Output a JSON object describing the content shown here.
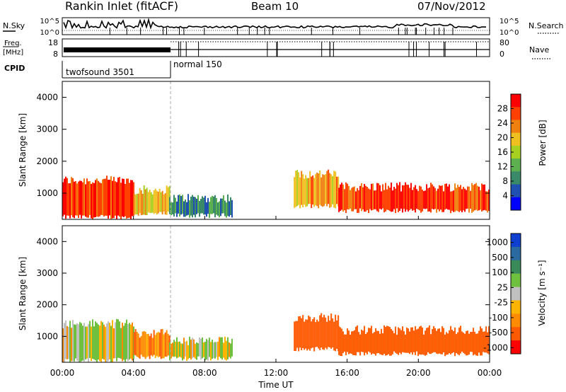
{
  "header": {
    "site": "Rankin Inlet (fitACF)",
    "beam": "Beam 10",
    "date": "07/Nov/2012"
  },
  "noise_panel": {
    "left_label": "N.Sky",
    "right_label": "N.Search",
    "top_tick": "10^5",
    "bottom_tick": "10^0"
  },
  "freq_panel": {
    "left_label_line1": "Freq.",
    "left_label_line2": "[MHz]",
    "right_label": "Nave",
    "left_ticks": [
      "18",
      "8"
    ],
    "right_ticks": [
      "80",
      "0"
    ]
  },
  "cpid_panel": {
    "label": "CPID",
    "segments": [
      {
        "name": "twofsound 3501",
        "start_hour": 0,
        "end_hour": 6
      },
      {
        "name": "normal 150",
        "start_hour": 6,
        "end_hour": 24
      }
    ]
  },
  "x_axis": {
    "label": "Time UT",
    "ticks": [
      "00:00",
      "04:00",
      "08:00",
      "12:00",
      "16:00",
      "20:00",
      "00:00"
    ]
  },
  "colors": {
    "power": [
      "#0000ff",
      "#2050b0",
      "#3a8a6a",
      "#5cb050",
      "#a8d020",
      "#f0c020",
      "#f08010",
      "#ff4000",
      "#ff0000"
    ],
    "velocity": [
      "#ff0000",
      "#ff5a00",
      "#ff8c00",
      "#ffb400",
      "#c0c0c0",
      "#70c040",
      "#3a8a5a",
      "#2a6aa0",
      "#1040d0"
    ]
  },
  "chart_data": [
    {
      "type": "heatmap",
      "panel": "power",
      "xlabel": "Time UT",
      "ylabel": "Slant Range [km]",
      "y_ticks": [
        "1000",
        "2000",
        "3000",
        "4000"
      ],
      "xlim_hours": [
        0,
        24
      ],
      "ylim_km": [
        180,
        4500
      ],
      "colorbar": {
        "label": "Power [dB]",
        "ticks": [
          "4",
          "8",
          "12",
          "16",
          "20",
          "24",
          "28"
        ],
        "range": [
          0,
          30
        ]
      },
      "echo_bands": [
        {
          "t_start": 0.0,
          "t_end": 4.0,
          "r_low": 250,
          "r_high": 1400,
          "power_db": 26
        },
        {
          "t_start": 4.0,
          "t_end": 6.0,
          "r_low": 350,
          "r_high": 1100,
          "power_db": 18
        },
        {
          "t_start": 6.0,
          "t_end": 9.5,
          "r_low": 300,
          "r_high": 850,
          "power_db": 8
        },
        {
          "t_start": 13.0,
          "t_end": 15.5,
          "r_low": 600,
          "r_high": 1600,
          "power_db": 20
        },
        {
          "t_start": 15.5,
          "t_end": 24.0,
          "r_low": 450,
          "r_high": 1200,
          "power_db": 26
        }
      ]
    },
    {
      "type": "heatmap",
      "panel": "velocity",
      "xlabel": "Time UT",
      "ylabel": "Slant Range [km]",
      "y_ticks": [
        "1000",
        "2000",
        "3000",
        "4000"
      ],
      "xlim_hours": [
        0,
        24
      ],
      "ylim_km": [
        180,
        4500
      ],
      "colorbar": {
        "label": "Velocity [m s⁻¹]",
        "ticks": [
          "1000",
          "500",
          "100",
          "25",
          "-25",
          "-100",
          "-500",
          "-1000"
        ],
        "range": [
          -1000,
          1000
        ]
      },
      "echo_bands": [
        {
          "t_start": 0.0,
          "t_end": 4.0,
          "r_low": 250,
          "r_high": 1400,
          "velocity": 100
        },
        {
          "t_start": 4.0,
          "t_end": 6.0,
          "r_low": 350,
          "r_high": 1100,
          "velocity": -100
        },
        {
          "t_start": 6.0,
          "t_end": 9.5,
          "r_low": 300,
          "r_high": 850,
          "velocity": 100
        },
        {
          "t_start": 13.0,
          "t_end": 15.5,
          "r_low": 600,
          "r_high": 1600,
          "velocity": -300
        },
        {
          "t_start": 15.5,
          "t_end": 24.0,
          "r_low": 450,
          "r_high": 1200,
          "velocity": -300
        }
      ]
    }
  ]
}
